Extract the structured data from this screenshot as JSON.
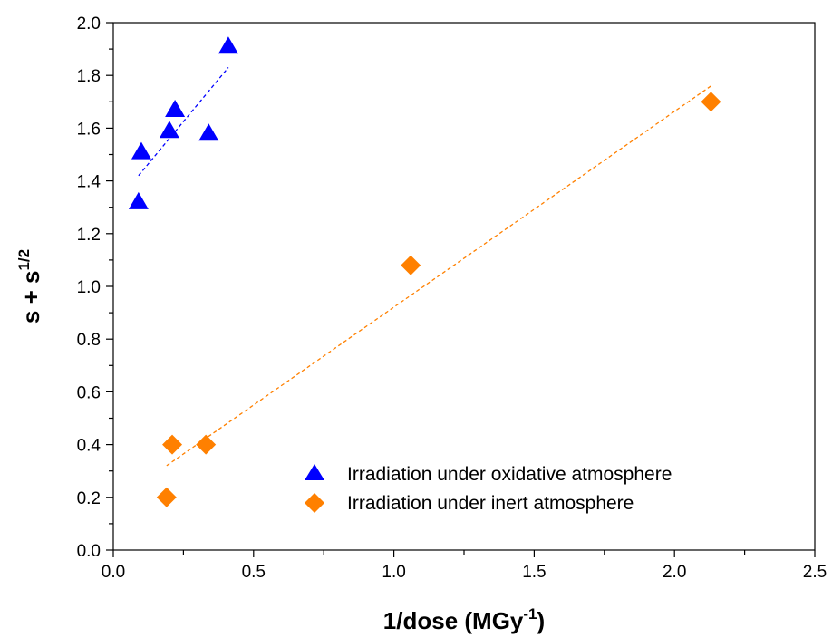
{
  "chart_data": {
    "type": "scatter",
    "title": "",
    "xlabel": {
      "main": "1/dose (MGy",
      "sup": "-1",
      "tail": ")"
    },
    "ylabel": {
      "main": "s + s",
      "sup": "1/2"
    },
    "xlim": [
      0.0,
      2.5
    ],
    "ylim": [
      0.0,
      2.0
    ],
    "x_ticks": [
      "0.0",
      "0.5",
      "1.0",
      "1.5",
      "2.0",
      "2.5"
    ],
    "y_ticks": [
      "0.0",
      "0.2",
      "0.4",
      "0.6",
      "0.8",
      "1.0",
      "1.2",
      "1.4",
      "1.6",
      "1.8",
      "2.0"
    ],
    "grid": false,
    "legend_position": "bottom-right",
    "series": [
      {
        "name": "Irradiation under oxidative atmosphere",
        "marker": "triangle",
        "color": "#0000ff",
        "x": [
          0.09,
          0.1,
          0.2,
          0.22,
          0.34,
          0.41
        ],
        "y": [
          1.32,
          1.51,
          1.59,
          1.67,
          1.58,
          1.91
        ],
        "fit": {
          "x": [
            0.09,
            0.41
          ],
          "y": [
            1.42,
            1.83
          ]
        }
      },
      {
        "name": "Irradiation under inert atmosphere",
        "marker": "diamond",
        "color": "#ff8000",
        "x": [
          0.19,
          0.21,
          0.33,
          1.06,
          2.13
        ],
        "y": [
          0.2,
          0.4,
          0.4,
          1.08,
          1.7
        ],
        "fit": {
          "x": [
            0.19,
            2.13
          ],
          "y": [
            0.32,
            1.76
          ]
        }
      }
    ]
  }
}
